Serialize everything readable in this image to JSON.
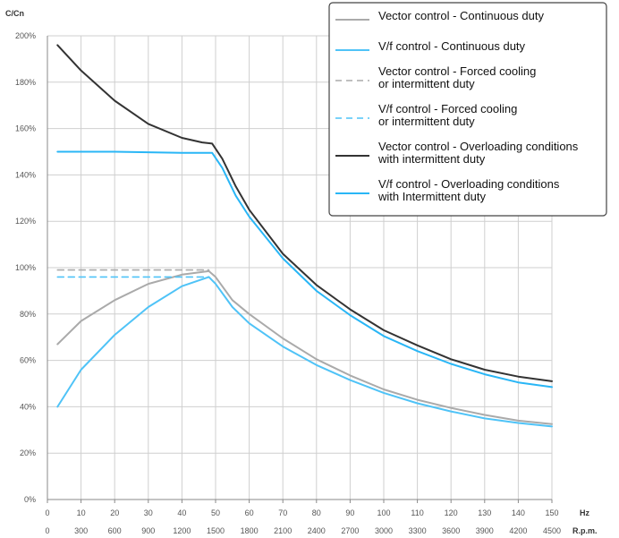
{
  "chart_data": {
    "type": "line",
    "ylabel": "C/Cn",
    "x_hz_label": "Hz",
    "x_rpm_label": "R.p.m.",
    "xlim": [
      0,
      150
    ],
    "ylim": [
      0,
      200
    ],
    "x_ticks_hz": [
      "0",
      "10",
      "20",
      "30",
      "40",
      "50",
      "60",
      "70",
      "80",
      "90",
      "100",
      "110",
      "120",
      "130",
      "140",
      "150"
    ],
    "x_ticks_rpm": [
      "0",
      "300",
      "600",
      "900",
      "1200",
      "1500",
      "1800",
      "2100",
      "2400",
      "2700",
      "3000",
      "3300",
      "3600",
      "3900",
      "4200",
      "4500"
    ],
    "y_ticks": [
      "0%",
      "20%",
      "40%",
      "60%",
      "80%",
      "100%",
      "120%",
      "140%",
      "160%",
      "180%",
      "200%"
    ],
    "grid": true,
    "legend_position": "top-right",
    "series": [
      {
        "name": "Vector control - Continuous duty",
        "color": "#aaaaaa",
        "dash": "solid",
        "points": [
          [
            3,
            67
          ],
          [
            10,
            77
          ],
          [
            20,
            86
          ],
          [
            30,
            93
          ],
          [
            40,
            97
          ],
          [
            48,
            98.5
          ],
          [
            50,
            96
          ],
          [
            55,
            86
          ],
          [
            60,
            80
          ],
          [
            70,
            69.5
          ],
          [
            80,
            60.5
          ],
          [
            90,
            53.5
          ],
          [
            100,
            47.5
          ],
          [
            110,
            43
          ],
          [
            120,
            39.5
          ],
          [
            130,
            36.5
          ],
          [
            140,
            34
          ],
          [
            150,
            32.5
          ]
        ]
      },
      {
        "name": "V/f control - Continuous duty",
        "color": "#4fc3f7",
        "dash": "solid",
        "points": [
          [
            3,
            40
          ],
          [
            10,
            56
          ],
          [
            20,
            71
          ],
          [
            30,
            83
          ],
          [
            40,
            92
          ],
          [
            48,
            96
          ],
          [
            50,
            93
          ],
          [
            55,
            83
          ],
          [
            60,
            76
          ],
          [
            70,
            66
          ],
          [
            80,
            58
          ],
          [
            90,
            51.5
          ],
          [
            100,
            46
          ],
          [
            110,
            41.5
          ],
          [
            120,
            38
          ],
          [
            130,
            35
          ],
          [
            140,
            33
          ],
          [
            150,
            31.5
          ]
        ]
      },
      {
        "name": "Vector control - Forced cooling\nor intermittent duty",
        "color": "#aaaaaa",
        "dash": "dashed",
        "points": [
          [
            3,
            99
          ],
          [
            48,
            99
          ]
        ]
      },
      {
        "name": "V/f control - Forced cooling\nor intermittent duty",
        "color": "#4fc3f7",
        "dash": "dashed",
        "points": [
          [
            3,
            96
          ],
          [
            48,
            96
          ]
        ]
      },
      {
        "name": "Vector control - Overloading conditions\nwith intermittent duty",
        "color": "#333333",
        "dash": "solid",
        "points": [
          [
            3,
            196
          ],
          [
            10,
            185
          ],
          [
            20,
            172
          ],
          [
            30,
            162
          ],
          [
            40,
            156
          ],
          [
            46,
            154
          ],
          [
            49,
            153.5
          ],
          [
            52,
            147
          ],
          [
            56,
            135
          ],
          [
            60,
            125
          ],
          [
            70,
            106
          ],
          [
            80,
            92.5
          ],
          [
            90,
            82
          ],
          [
            100,
            73
          ],
          [
            110,
            66.5
          ],
          [
            120,
            60.5
          ],
          [
            130,
            56
          ],
          [
            140,
            53
          ],
          [
            150,
            51
          ]
        ]
      },
      {
        "name": "V/f control - Overloading conditions\nwith Intermittent duty",
        "color": "#29b6f6",
        "dash": "solid",
        "points": [
          [
            3,
            150
          ],
          [
            20,
            150
          ],
          [
            40,
            149.5
          ],
          [
            49,
            149.5
          ],
          [
            52,
            143
          ],
          [
            56,
            131
          ],
          [
            60,
            122
          ],
          [
            70,
            104
          ],
          [
            80,
            90
          ],
          [
            90,
            79.5
          ],
          [
            100,
            70.5
          ],
          [
            110,
            64
          ],
          [
            120,
            58.5
          ],
          [
            130,
            54
          ],
          [
            140,
            50.5
          ],
          [
            150,
            48.5
          ]
        ]
      }
    ]
  }
}
